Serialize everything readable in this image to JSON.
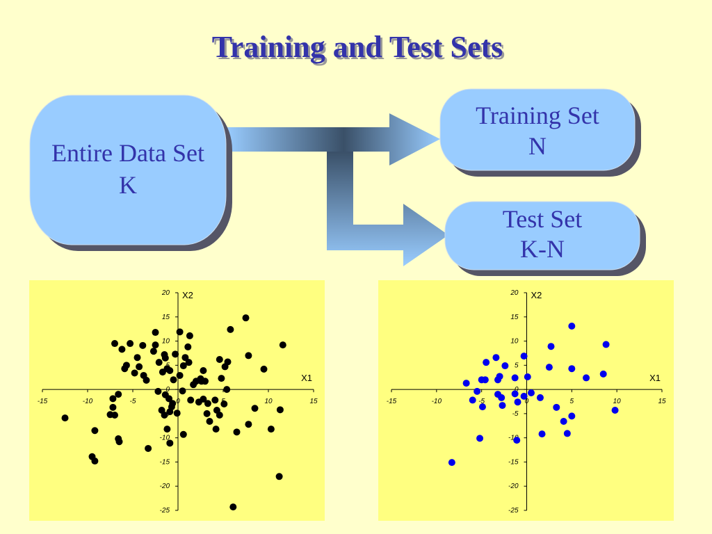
{
  "title": "Training and Test Sets",
  "nodes": [
    {
      "lines": [
        "Entire Data Set",
        "K"
      ]
    },
    {
      "lines": [
        "Training Set",
        "N"
      ]
    },
    {
      "lines": [
        "Test Set",
        "K-N"
      ]
    }
  ],
  "chart_data": [
    {
      "type": "scatter",
      "x_label": "X1",
      "y_label": "X2",
      "color": "#000000",
      "xlim": [
        -15,
        15
      ],
      "ylim": [
        -25,
        20
      ],
      "xticks": [
        -15,
        -10,
        -5,
        0,
        5,
        10,
        15
      ],
      "yticks": [
        -25,
        -20,
        -15,
        -10,
        -5,
        0,
        5,
        10,
        15,
        20
      ],
      "x": [
        -12.5,
        -9.2,
        -9.5,
        -9.2,
        -7,
        -6.2,
        -5.3,
        -5.7,
        -5.9,
        -4.8,
        -4.5,
        -3.9,
        -4.3,
        -3.8,
        -3.5,
        -2.7,
        -2.5,
        -2.5,
        -2.1,
        -1.5,
        -1.4,
        -1.7,
        -1.2,
        -0.9,
        -0.3,
        0.2,
        1.1,
        1.3,
        0.8,
        1.2,
        0.6,
        0.2,
        -0.5,
        1.7,
        2,
        2.6,
        3,
        2.8,
        2.5,
        4.6,
        5.5,
        5.2,
        4.8,
        5.8,
        7.5,
        7.8,
        9.5,
        11.6,
        5.4,
        -7.2,
        -6.6,
        -7.2,
        -7.5,
        -7,
        -6.6,
        -6.5,
        -3.3,
        -2.2,
        -1.4,
        -1.8,
        -1.5,
        -0.9,
        -1,
        -0.6,
        -0.7,
        -0.1,
        -1.2,
        -0.9,
        0.6,
        0.5,
        1.4,
        2.3,
        2.8,
        3.3,
        3.5,
        3.2,
        4.1,
        4.3,
        4.6,
        4.2,
        5.1,
        6.5,
        7.8,
        8.5,
        10.3,
        11.3,
        11.2,
        6.1
      ],
      "values": [
        -5.9,
        -8.5,
        -13.9,
        -14.8,
        9.5,
        8.3,
        9.5,
        5,
        4.3,
        3.4,
        6.6,
        9.1,
        4.7,
        2.9,
        1.9,
        7.9,
        11.8,
        9.2,
        5.6,
        7.2,
        6.5,
        3.6,
        4.3,
        3.9,
        7.3,
        11.9,
        8.8,
        11.1,
        6.6,
        5.6,
        4.9,
        2.9,
        2,
        1,
        1.7,
        1.7,
        1.7,
        3.9,
        2.2,
        6.2,
        5.7,
        4.7,
        2.3,
        12.4,
        14.8,
        7,
        4.2,
        9.2,
        0,
        -1.9,
        -1,
        -3.7,
        -5.2,
        -5.3,
        -10.2,
        -10.8,
        -12.2,
        -0.4,
        -1.1,
        -4.3,
        -5.3,
        -4.6,
        -1.9,
        -2.9,
        -3.6,
        -4.9,
        -8.2,
        -11.1,
        -9.3,
        -0.3,
        -2.2,
        -2.6,
        -2,
        -2.9,
        -6.6,
        -5,
        -2.2,
        -4.3,
        -5.3,
        -8.2,
        -3,
        -8.8,
        -7.2,
        -3.9,
        -8.2,
        -4.2,
        -18,
        -24.3
      ]
    },
    {
      "type": "scatter",
      "x_label": "X1",
      "y_label": "X2",
      "color": "#0000ee",
      "xlim": [
        -15,
        15
      ],
      "ylim": [
        -25,
        20
      ],
      "xticks": [
        -15,
        -10,
        -5,
        0,
        5,
        10,
        15
      ],
      "yticks": [
        -25,
        -20,
        -15,
        -10,
        -5,
        0,
        5,
        10,
        15,
        20
      ],
      "x": [
        -8.3,
        -6.7,
        -6,
        -5.2,
        -5.5,
        -5,
        -4.6,
        -4.5,
        -4.9,
        -3.4,
        -3,
        -3.2,
        -2.4,
        -3.2,
        -2.8,
        -2.7,
        -1.3,
        -1.3,
        -1,
        -1.1,
        -0.3,
        -0.3,
        0.1,
        0.5,
        1.5,
        1.7,
        2.5,
        2.7,
        3.3,
        4.1,
        4.5,
        5,
        5,
        5,
        6.6,
        8.5,
        8.8,
        9.8
      ],
      "values": [
        -15.1,
        1.3,
        -2.2,
        -10.1,
        -0.4,
        2,
        2,
        5.6,
        -3.6,
        6.6,
        2.7,
        2,
        4.9,
        -1,
        -1.7,
        -3.3,
        2.4,
        -0.9,
        -2.6,
        -10.5,
        6.9,
        -1.4,
        2.6,
        -0.7,
        -1.7,
        -9.2,
        4.6,
        8.9,
        -3.7,
        -6.6,
        -9.1,
        4.3,
        -5.5,
        13.1,
        2.4,
        3.2,
        9.3,
        -4.3
      ]
    }
  ]
}
